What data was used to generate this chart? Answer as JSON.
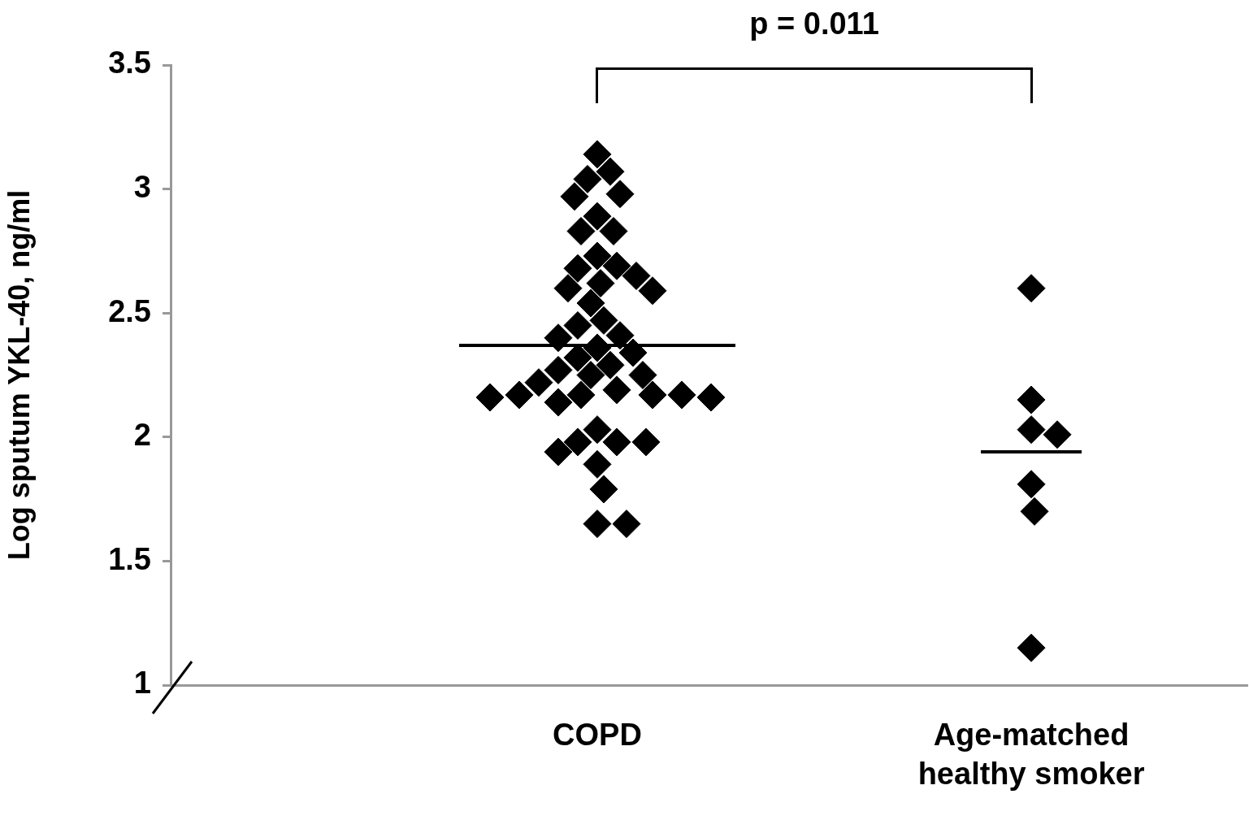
{
  "chart_data": {
    "type": "scatter",
    "ylabel": "Log sputum YKL-40, ng/ml",
    "annotations": [
      "p = 0.011"
    ],
    "categories": [
      "COPD",
      "Age-matched\nhealthy smoker"
    ],
    "ylim": [
      1,
      3.5
    ],
    "yticks": [
      1,
      1.5,
      2,
      2.5,
      3,
      3.5
    ],
    "grid": false,
    "legend": false,
    "marker": "diamond",
    "series": [
      {
        "type": "scatter",
        "color": "#000000",
        "x": [
          "COPD",
          "COPD",
          "COPD",
          "COPD",
          "COPD",
          "COPD",
          "COPD",
          "COPD",
          "COPD",
          "COPD",
          "COPD",
          "COPD",
          "COPD",
          "COPD",
          "COPD",
          "COPD",
          "COPD",
          "COPD",
          "COPD",
          "COPD",
          "COPD",
          "COPD",
          "COPD",
          "COPD",
          "COPD",
          "COPD",
          "COPD",
          "COPD",
          "COPD",
          "COPD",
          "COPD",
          "COPD",
          "COPD",
          "COPD",
          "COPD",
          "COPD",
          "COPD",
          "COPD",
          "COPD",
          "COPD",
          "COPD",
          "COPD",
          "COPD",
          "COPD",
          "COPD"
        ],
        "values": [
          3.14,
          3.07,
          3.04,
          2.98,
          2.97,
          2.89,
          2.83,
          2.83,
          2.73,
          2.69,
          2.68,
          2.65,
          2.62,
          2.6,
          2.59,
          2.54,
          2.47,
          2.45,
          2.41,
          2.4,
          2.36,
          2.34,
          2.32,
          2.29,
          2.27,
          2.25,
          2.25,
          2.22,
          2.19,
          2.17,
          2.17,
          2.17,
          2.17,
          2.16,
          2.16,
          2.14,
          2.03,
          1.98,
          1.98,
          1.98,
          1.94,
          1.89,
          1.79,
          1.65,
          1.65
        ]
      },
      {
        "type": "scatter",
        "color": "#000000",
        "marker": "diamond",
        "x": [
          "Age-matched\nhealthy smoker",
          "Age-matched\nhealthy smoker",
          "Age-matched\nhealthy smoker",
          "Age-matched\nhealthy smoker",
          "Age-matched\nhealthy smoker",
          "Age-matched\nhealthy smoker",
          "Age-matched\nhealthy smoker"
        ],
        "values": [
          2.6,
          2.15,
          2.03,
          2.01,
          1.81,
          1.7,
          1.15
        ]
      }
    ],
    "ref_lines": [
      {
        "axis": "y",
        "value": 2.37,
        "color": "#000000"
      },
      {
        "axis": "y",
        "value": 1.94,
        "color": "#000000"
      }
    ]
  }
}
